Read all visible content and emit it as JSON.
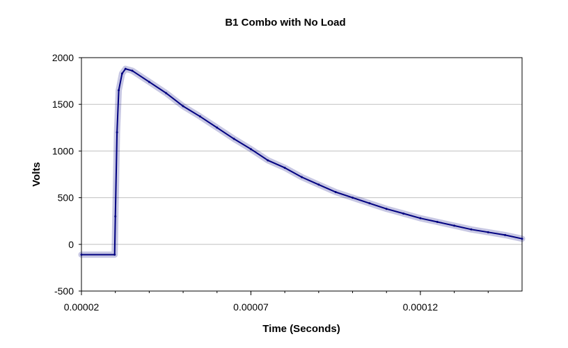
{
  "chart_data": {
    "type": "line",
    "title": "B1 Combo with No Load",
    "xlabel": "Time (Seconds)",
    "ylabel": "Volts",
    "xlim": [
      2e-05,
      0.00015
    ],
    "ylim": [
      -500,
      2000
    ],
    "x_ticks": [
      "0.00002",
      "0.00007",
      "0.00012"
    ],
    "y_ticks": [
      "2000",
      "1500",
      "1000",
      "500",
      "0",
      "-500"
    ],
    "grid": "horizontal",
    "legend": "none",
    "series": [
      {
        "color": "#000080",
        "x": [
          2e-05,
          2.98e-05,
          3e-05,
          3.05e-05,
          3.1e-05,
          3.2e-05,
          3.3e-05,
          3.5e-05,
          4e-05,
          4.5e-05,
          5e-05,
          5.5e-05,
          6e-05,
          6.5e-05,
          7e-05,
          7.5e-05,
          8e-05,
          8.5e-05,
          9e-05,
          9.5e-05,
          0.0001,
          0.000105,
          0.00011,
          0.000115,
          0.00012,
          0.000125,
          0.00013,
          0.000135,
          0.00014,
          0.000145,
          0.00015
        ],
        "y": [
          -110,
          -110,
          300,
          1200,
          1650,
          1830,
          1880,
          1860,
          1740,
          1620,
          1480,
          1370,
          1250,
          1130,
          1020,
          900,
          820,
          720,
          640,
          560,
          500,
          440,
          380,
          330,
          280,
          240,
          200,
          160,
          130,
          100,
          60
        ]
      }
    ]
  }
}
